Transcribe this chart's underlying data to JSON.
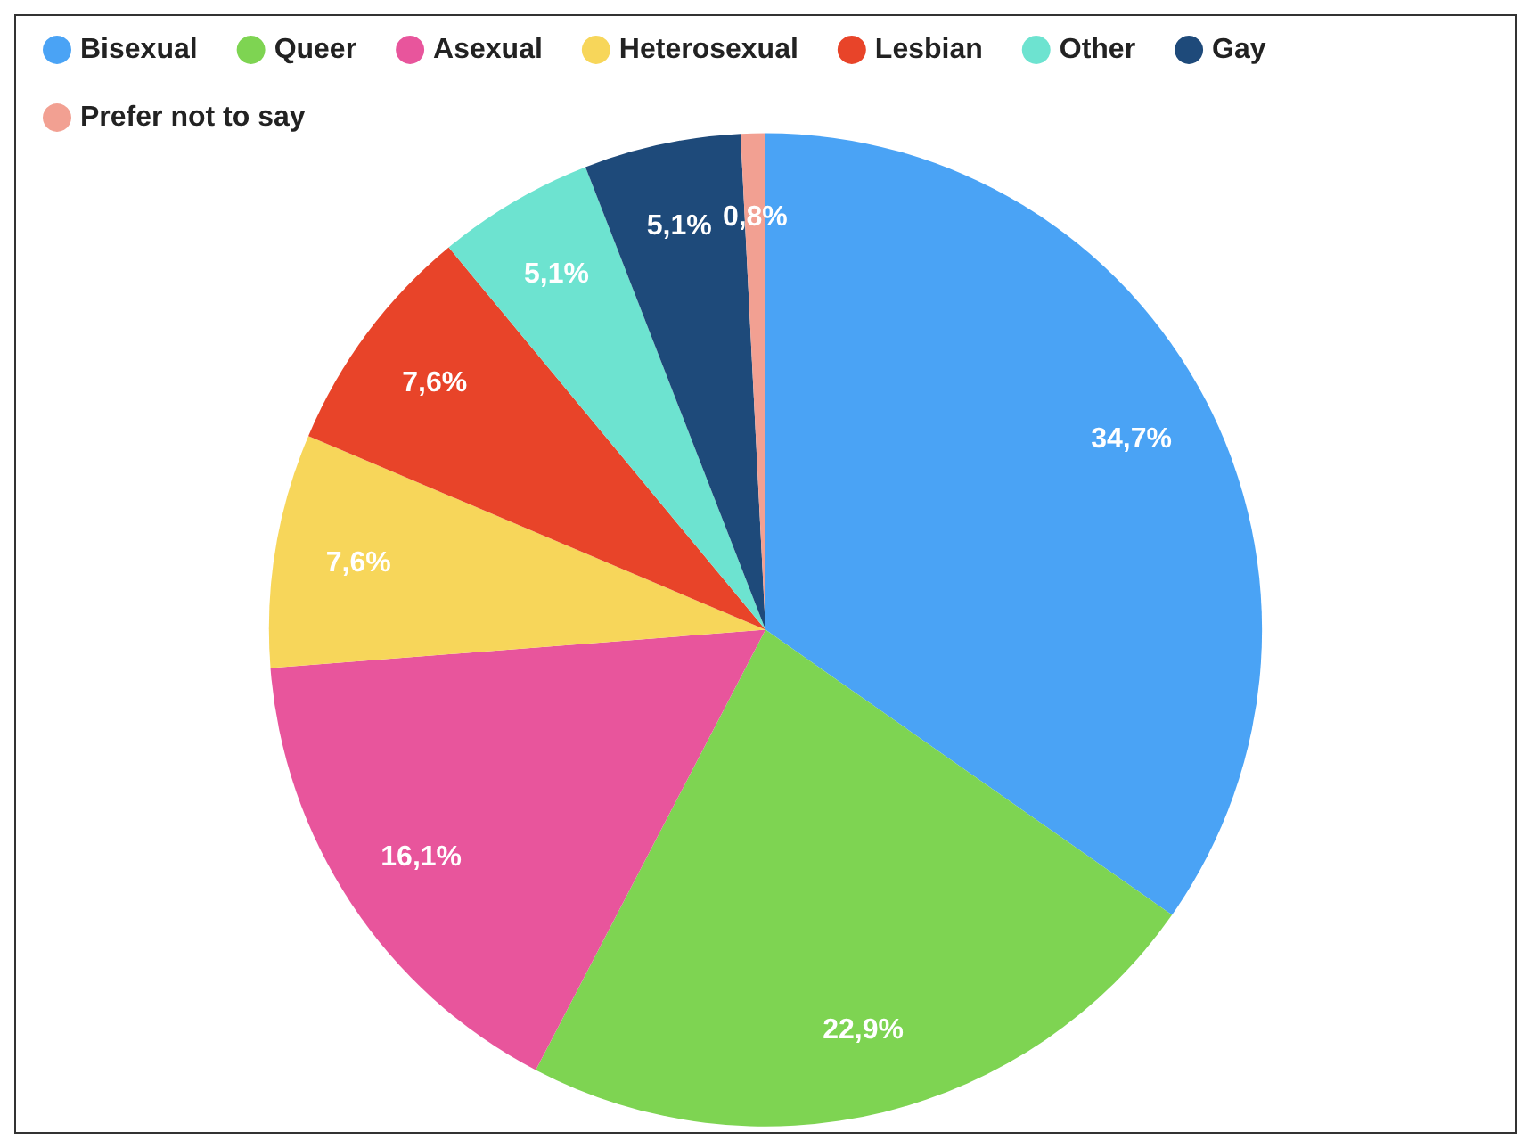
{
  "chart_data": {
    "type": "pie",
    "categories": [
      "Bisexual",
      "Queer",
      "Asexual",
      "Heterosexual",
      "Lesbian",
      "Other",
      "Gay",
      "Prefer not to say"
    ],
    "values": [
      34.7,
      22.9,
      16.1,
      7.6,
      7.6,
      5.1,
      5.1,
      0.8
    ],
    "value_labels": [
      "34,7%",
      "22,9%",
      "16,1%",
      "7,6%",
      "7,6%",
      "5,1%",
      "5,1%",
      "0,8%"
    ],
    "colors": [
      "#4aa3f5",
      "#7ed452",
      "#e8559c",
      "#f7d65a",
      "#e84429",
      "#6de3d0",
      "#1e4a7a",
      "#f2a092"
    ],
    "legend": "top left"
  }
}
